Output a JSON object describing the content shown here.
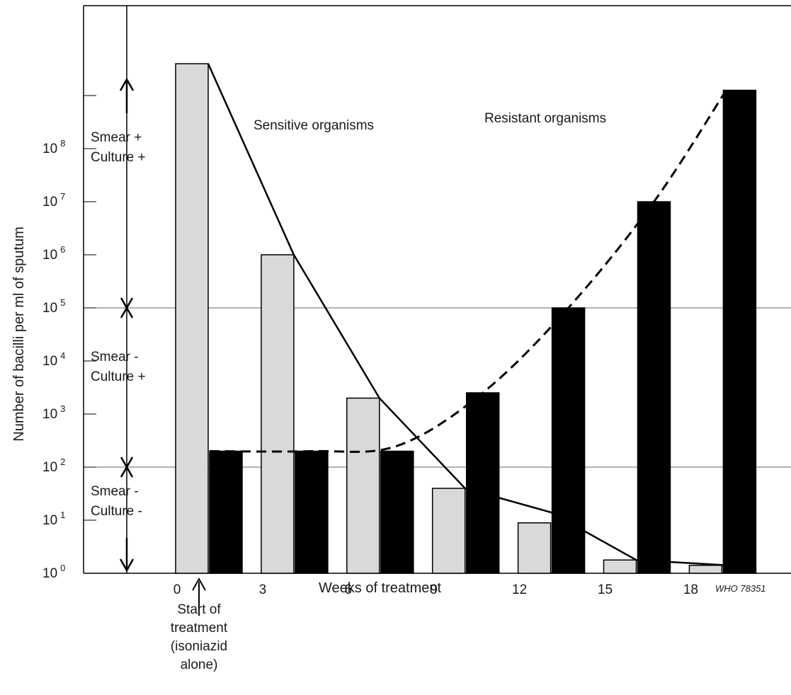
{
  "chart_data": {
    "type": "bar",
    "xlabel": "Weeks of treatment",
    "ylabel": "Number of bacilli per ml of sputum",
    "x_categories": [
      "0",
      "3",
      "6",
      "9",
      "12",
      "15",
      "18"
    ],
    "y_scale": "log10",
    "y_tick_labels": [
      {
        "base": "10",
        "exp": "0"
      },
      {
        "base": "10",
        "exp": "1"
      },
      {
        "base": "10",
        "exp": "2"
      },
      {
        "base": "10",
        "exp": "3"
      },
      {
        "base": "10",
        "exp": "4"
      },
      {
        "base": "10",
        "exp": "5"
      },
      {
        "base": "10",
        "exp": "6"
      },
      {
        "base": "10",
        "exp": "7"
      },
      {
        "base": "10",
        "exp": "8"
      }
    ],
    "ylim_log10": [
      0,
      9.7
    ],
    "series": [
      {
        "name": "Sensitive organisms",
        "color": "#d9d9d9",
        "line_style": "solid",
        "weeks": [
          0,
          3,
          6,
          9,
          12,
          15,
          18
        ],
        "log10_values": [
          9.6,
          6.0,
          3.3,
          1.6,
          0.95,
          0.25,
          0.15
        ],
        "line_log10_values": [
          9.6,
          6.0,
          3.3,
          1.6,
          1.15,
          0.25,
          0.15
        ]
      },
      {
        "name": "Resistant organisms",
        "color": "#000000",
        "line_style": "dashed",
        "weeks": [
          0,
          3,
          6,
          9,
          12,
          15,
          18
        ],
        "log10_values": [
          2.3,
          2.3,
          2.3,
          3.4,
          5.0,
          7.0,
          9.1
        ],
        "line_log10_values": [
          2.3,
          2.3,
          2.4,
          3.4,
          5.0,
          7.0,
          9.1
        ]
      }
    ],
    "zones": [
      {
        "lines": [
          "Smear  +",
          "Culture +"
        ]
      },
      {
        "lines": [
          "Smear  -",
          "Culture +"
        ]
      },
      {
        "lines": [
          "Smear  -",
          "Culture -"
        ]
      }
    ],
    "zone_boundaries_log10": [
      2,
      5
    ],
    "annotation": [
      "Start of",
      "treatment",
      "(isoniazid",
      "alone)"
    ],
    "credit": "WHO 78351"
  }
}
